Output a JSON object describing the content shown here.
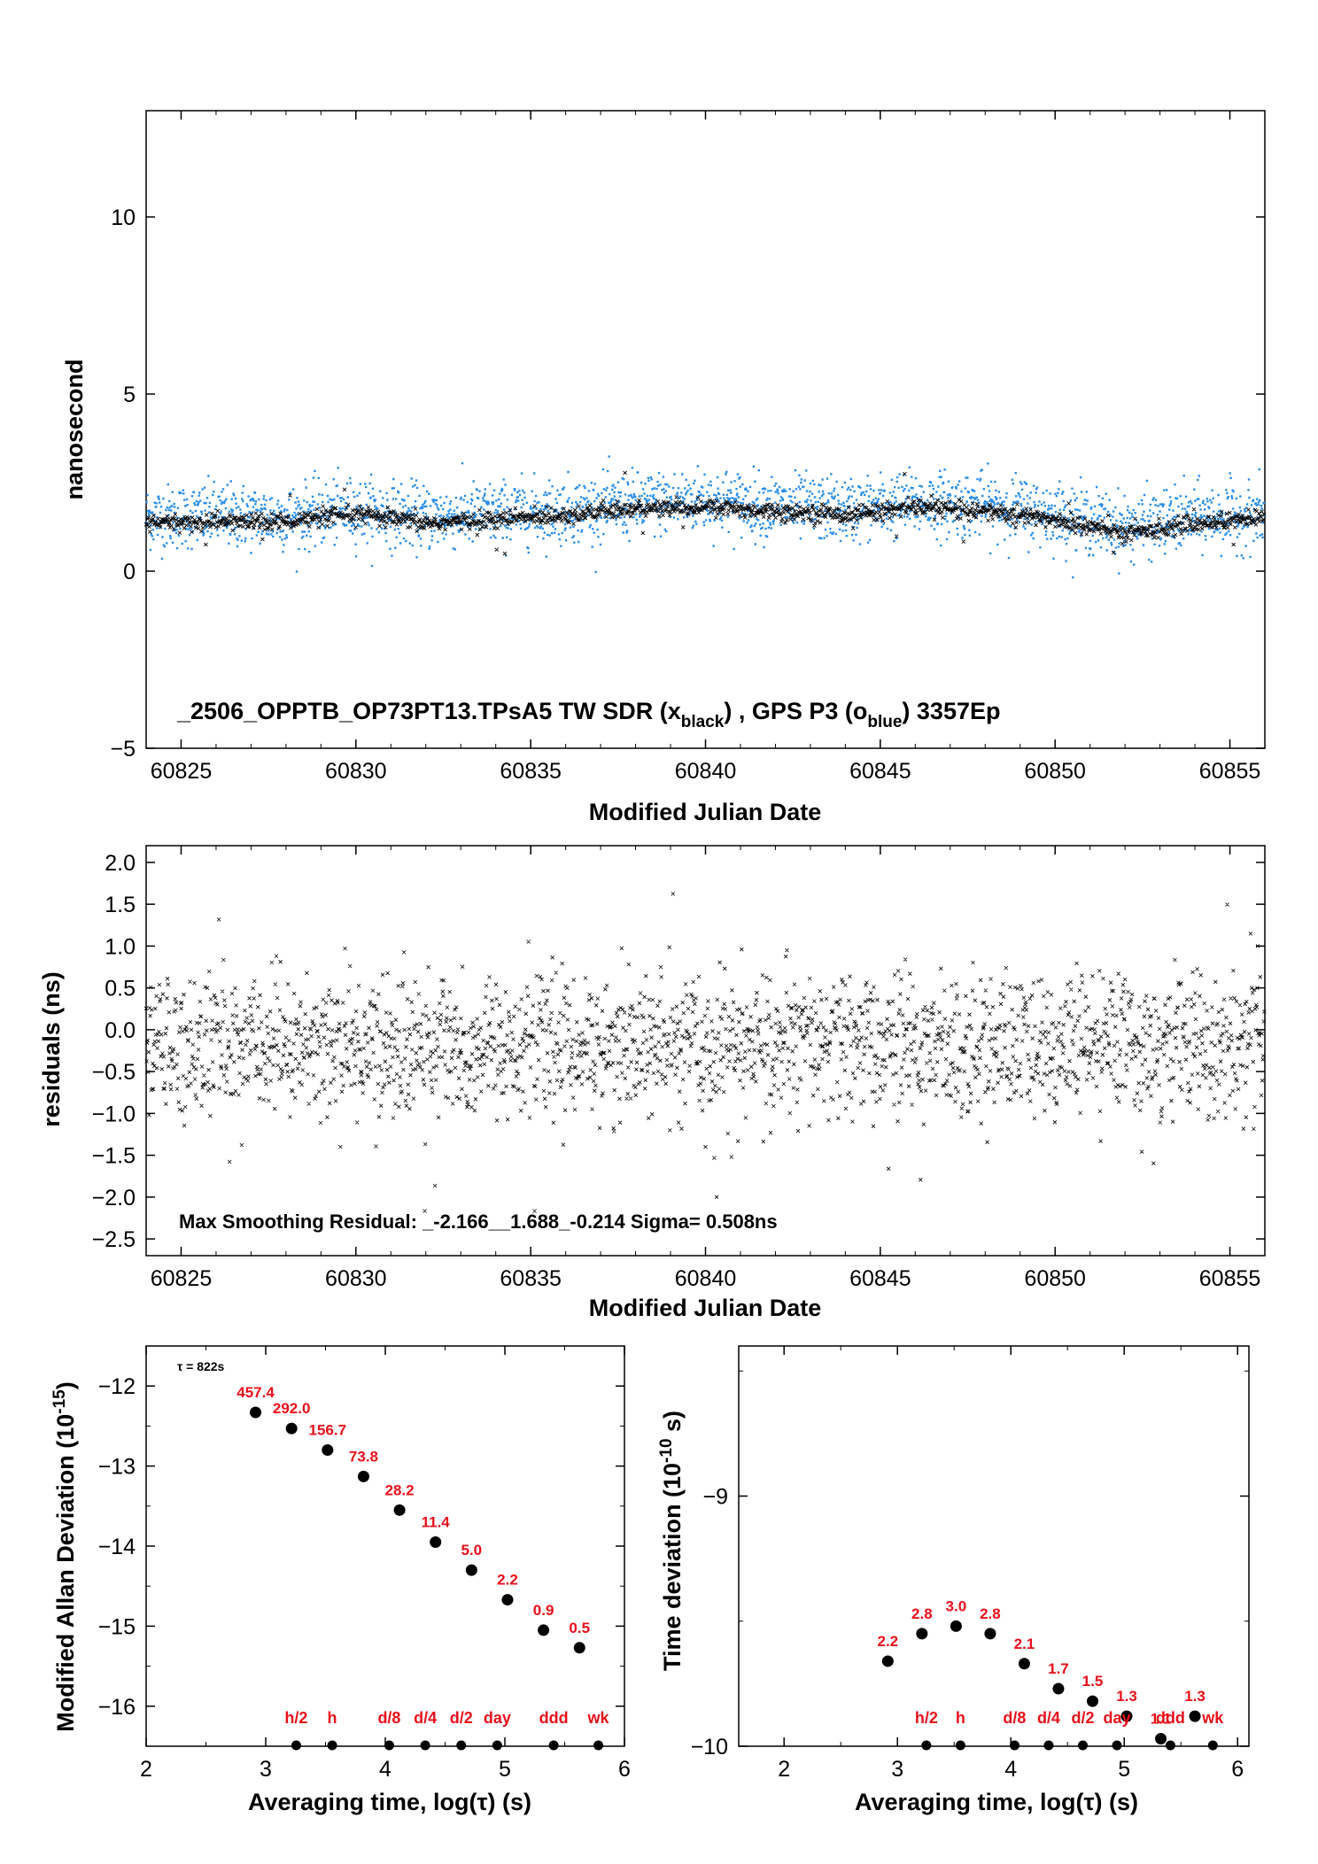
{
  "colors": {
    "gps": "#2a8ee8",
    "tw": "#000000",
    "label": "#e8101a"
  },
  "chart_data": [
    {
      "id": "timeseries",
      "type": "scatter",
      "xlabel": "Modified Julian Date",
      "ylabel": "nanosecond",
      "xlim": [
        60824.0,
        60856.0
      ],
      "ylim": [
        -5,
        13
      ],
      "xticks": [
        60825,
        60830,
        60835,
        60840,
        60845,
        60850,
        60855
      ],
      "yticks": [
        -5,
        0,
        5,
        10
      ],
      "caption": {
        "main": "_2506_OPPTB_OP73PT13.TPsA5     TW SDR (x",
        "sub1": "black",
        "mid": ") ,  GPS P3 (o",
        "sub2": "blue",
        "end": ")  3357Ep"
      },
      "series": [
        {
          "marker": "o",
          "color": "#2a8ee8",
          "trend": [
            [
              60824.0,
              1.55
            ],
            [
              60826.0,
              1.6
            ],
            [
              60828.0,
              1.55
            ],
            [
              60830.0,
              1.75
            ],
            [
              60832.0,
              1.55
            ],
            [
              60834.0,
              1.65
            ],
            [
              60836.0,
              1.75
            ],
            [
              60838.0,
              1.9
            ],
            [
              60840.0,
              2.05
            ],
            [
              60842.0,
              1.85
            ],
            [
              60844.0,
              1.75
            ],
            [
              60846.0,
              1.95
            ],
            [
              60848.0,
              1.9
            ],
            [
              60850.0,
              1.65
            ],
            [
              60852.0,
              1.25
            ],
            [
              60854.0,
              1.55
            ],
            [
              60856.0,
              1.6
            ]
          ],
          "spread": 0.45
        },
        {
          "marker": "x",
          "color": "#000000",
          "trend": [
            [
              60824.0,
              1.35
            ],
            [
              60826.0,
              1.4
            ],
            [
              60828.0,
              1.4
            ],
            [
              60830.0,
              1.6
            ],
            [
              60832.0,
              1.35
            ],
            [
              60834.0,
              1.45
            ],
            [
              60836.0,
              1.6
            ],
            [
              60838.0,
              1.75
            ],
            [
              60840.0,
              1.8
            ],
            [
              60842.0,
              1.7
            ],
            [
              60844.0,
              1.6
            ],
            [
              60846.0,
              1.8
            ],
            [
              60848.0,
              1.7
            ],
            [
              60850.0,
              1.45
            ],
            [
              60852.0,
              1.05
            ],
            [
              60854.0,
              1.35
            ],
            [
              60856.0,
              1.5
            ]
          ],
          "spread": 0.12
        }
      ]
    },
    {
      "id": "residuals",
      "type": "scatter",
      "xlabel": "Modified Julian Date",
      "ylabel": "residuals (ns)",
      "xlim": [
        60824.0,
        60856.0
      ],
      "ylim": [
        -2.7,
        2.2
      ],
      "xticks": [
        60825,
        60830,
        60835,
        60840,
        60845,
        60850,
        60855
      ],
      "yticks": [
        -2.5,
        -2.0,
        -1.5,
        -1.0,
        -0.5,
        0.0,
        0.5,
        1.0,
        1.5,
        2.0
      ],
      "ytick_labels": [
        "−2.5",
        "−2.0",
        "−1.5",
        "−1.0",
        "−0.5",
        "0.0",
        "0.5",
        "1.0",
        "1.5",
        "2.0"
      ],
      "caption": "Max Smoothing Residual: _-2.166__1.688_-0.214  Sigma= 0.508ns",
      "sigma": 0.508,
      "min": -2.166,
      "max": 1.688,
      "mean": -0.214
    },
    {
      "id": "mdev",
      "type": "scatter",
      "xlabel": "Averaging time, log(τ) (s)",
      "ylabel": "Modified Allan Deviation (10",
      "ylabel_sup": "-15",
      "ylabel_end": ")",
      "xlim": [
        2,
        6
      ],
      "ylim": [
        -16.5,
        -11.5
      ],
      "xticks": [
        2,
        3,
        4,
        5,
        6
      ],
      "yticks": [
        -16,
        -15,
        -14,
        -13,
        -12
      ],
      "ytick_labels": [
        "−16",
        "−15",
        "−14",
        "−13",
        "−12"
      ],
      "note": "τ = 822s",
      "points": [
        {
          "x": 2.915,
          "y": -12.33,
          "label": "457.4"
        },
        {
          "x": 3.216,
          "y": -12.53,
          "label": "292.0"
        },
        {
          "x": 3.517,
          "y": -12.8,
          "label": "156.7"
        },
        {
          "x": 3.818,
          "y": -13.13,
          "label": "73.8"
        },
        {
          "x": 4.119,
          "y": -13.55,
          "label": "28.2"
        },
        {
          "x": 4.42,
          "y": -13.95,
          "label": "11.4"
        },
        {
          "x": 4.721,
          "y": -14.3,
          "label": "5.0"
        },
        {
          "x": 5.022,
          "y": -14.67,
          "label": "2.2"
        },
        {
          "x": 5.323,
          "y": -15.05,
          "label": "0.9"
        },
        {
          "x": 5.624,
          "y": -15.27,
          "label": "0.5"
        }
      ],
      "markers": [
        {
          "x": 3.255,
          "label": "h/2"
        },
        {
          "x": 3.556,
          "label": "h"
        },
        {
          "x": 4.033,
          "label": "d/8"
        },
        {
          "x": 4.334,
          "label": "d/4"
        },
        {
          "x": 4.635,
          "label": "d/2"
        },
        {
          "x": 4.936,
          "label": "day"
        },
        {
          "x": 5.408,
          "label": "ddd"
        },
        {
          "x": 5.782,
          "label": "wk"
        }
      ]
    },
    {
      "id": "tdev",
      "type": "scatter",
      "xlabel": "Averaging time, log(τ) (s)",
      "ylabel": "Time deviation (10",
      "ylabel_sup": "-10",
      "ylabel_end": " s)",
      "xlim": [
        1.6,
        6.1
      ],
      "ylim": [
        -10,
        -8.4
      ],
      "xticks": [
        2,
        3,
        4,
        5,
        6
      ],
      "yticks": [
        -10,
        -9
      ],
      "ytick_labels": [
        "−10",
        "−9"
      ],
      "points": [
        {
          "x": 2.915,
          "y": -9.66,
          "label": "2.2"
        },
        {
          "x": 3.216,
          "y": -9.55,
          "label": "2.8"
        },
        {
          "x": 3.517,
          "y": -9.52,
          "label": "3.0"
        },
        {
          "x": 3.818,
          "y": -9.55,
          "label": "2.8"
        },
        {
          "x": 4.119,
          "y": -9.67,
          "label": "2.1"
        },
        {
          "x": 4.42,
          "y": -9.77,
          "label": "1.7"
        },
        {
          "x": 4.721,
          "y": -9.82,
          "label": "1.5"
        },
        {
          "x": 5.022,
          "y": -9.88,
          "label": "1.3"
        },
        {
          "x": 5.323,
          "y": -9.97,
          "label": "1.1"
        },
        {
          "x": 5.624,
          "y": -9.88,
          "label": "1.3"
        }
      ],
      "markers": [
        {
          "x": 3.255,
          "label": "h/2"
        },
        {
          "x": 3.556,
          "label": "h"
        },
        {
          "x": 4.033,
          "label": "d/8"
        },
        {
          "x": 4.334,
          "label": "d/4"
        },
        {
          "x": 4.635,
          "label": "d/2"
        },
        {
          "x": 4.936,
          "label": "day"
        },
        {
          "x": 5.408,
          "label": "ddd"
        },
        {
          "x": 5.782,
          "label": "wk"
        }
      ]
    }
  ]
}
